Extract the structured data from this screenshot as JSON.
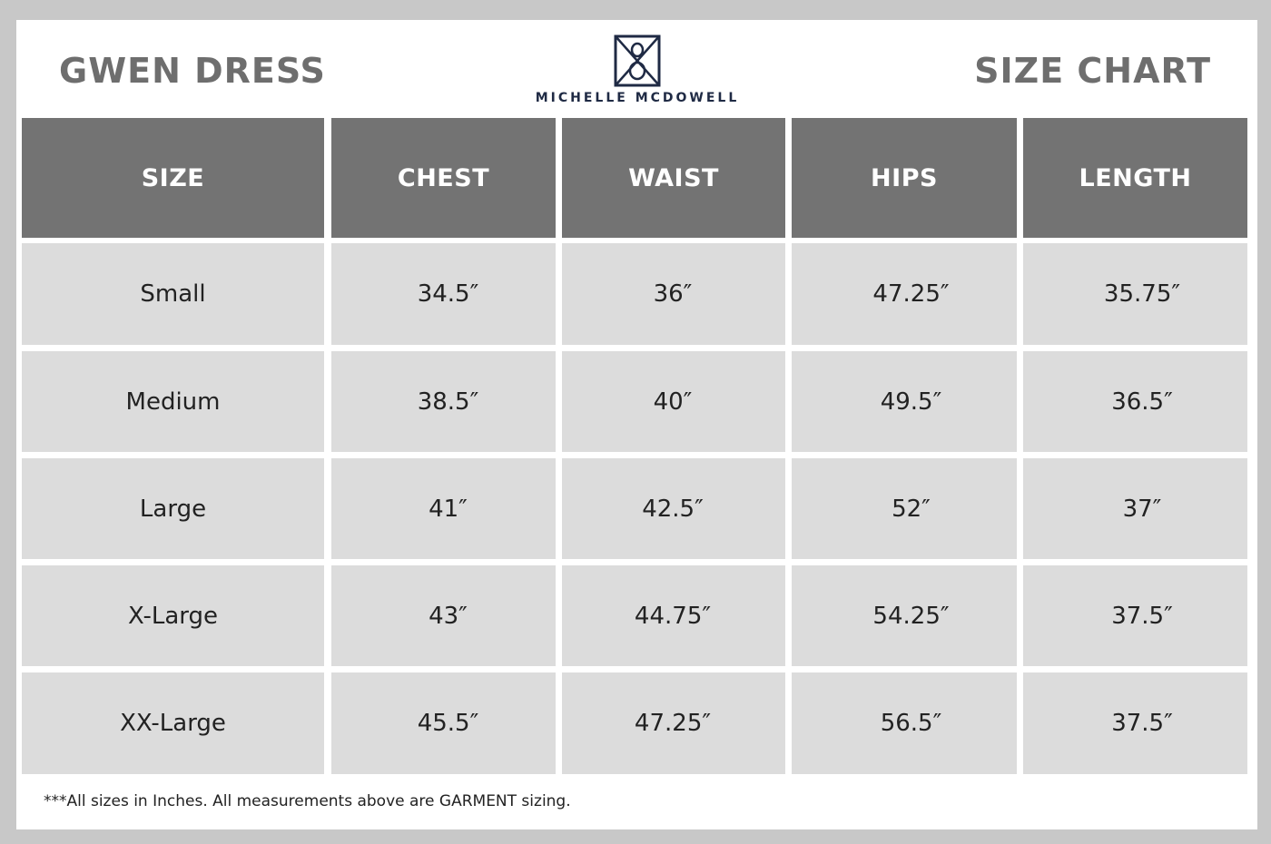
{
  "header": {
    "product_name": "GWEN DRESS",
    "chart_label": "SIZE CHART",
    "brand": "MICHELLE MCDOWELL",
    "brand_color": "#1f2a44"
  },
  "table": {
    "columns": [
      "SIZE",
      "CHEST",
      "WAIST",
      "HIPS",
      "LENGTH"
    ],
    "rows": [
      [
        "Small",
        "34.5″",
        "36″",
        "47.25″",
        "35.75″"
      ],
      [
        "Medium",
        "38.5″",
        "40″",
        "49.5″",
        "36.5″"
      ],
      [
        "Large",
        "41″",
        "42.5″",
        "52″",
        "37″"
      ],
      [
        "X-Large",
        "43″",
        "44.75″",
        "54.25″",
        "37.5″"
      ],
      [
        "XX-Large",
        "45.5″",
        "47.25″",
        "56.5″",
        "37.5″"
      ]
    ],
    "header_color": "#737373",
    "cell_color": "#dcdcdc"
  },
  "footnote": "***All sizes in Inches. All measurements above are GARMENT sizing."
}
